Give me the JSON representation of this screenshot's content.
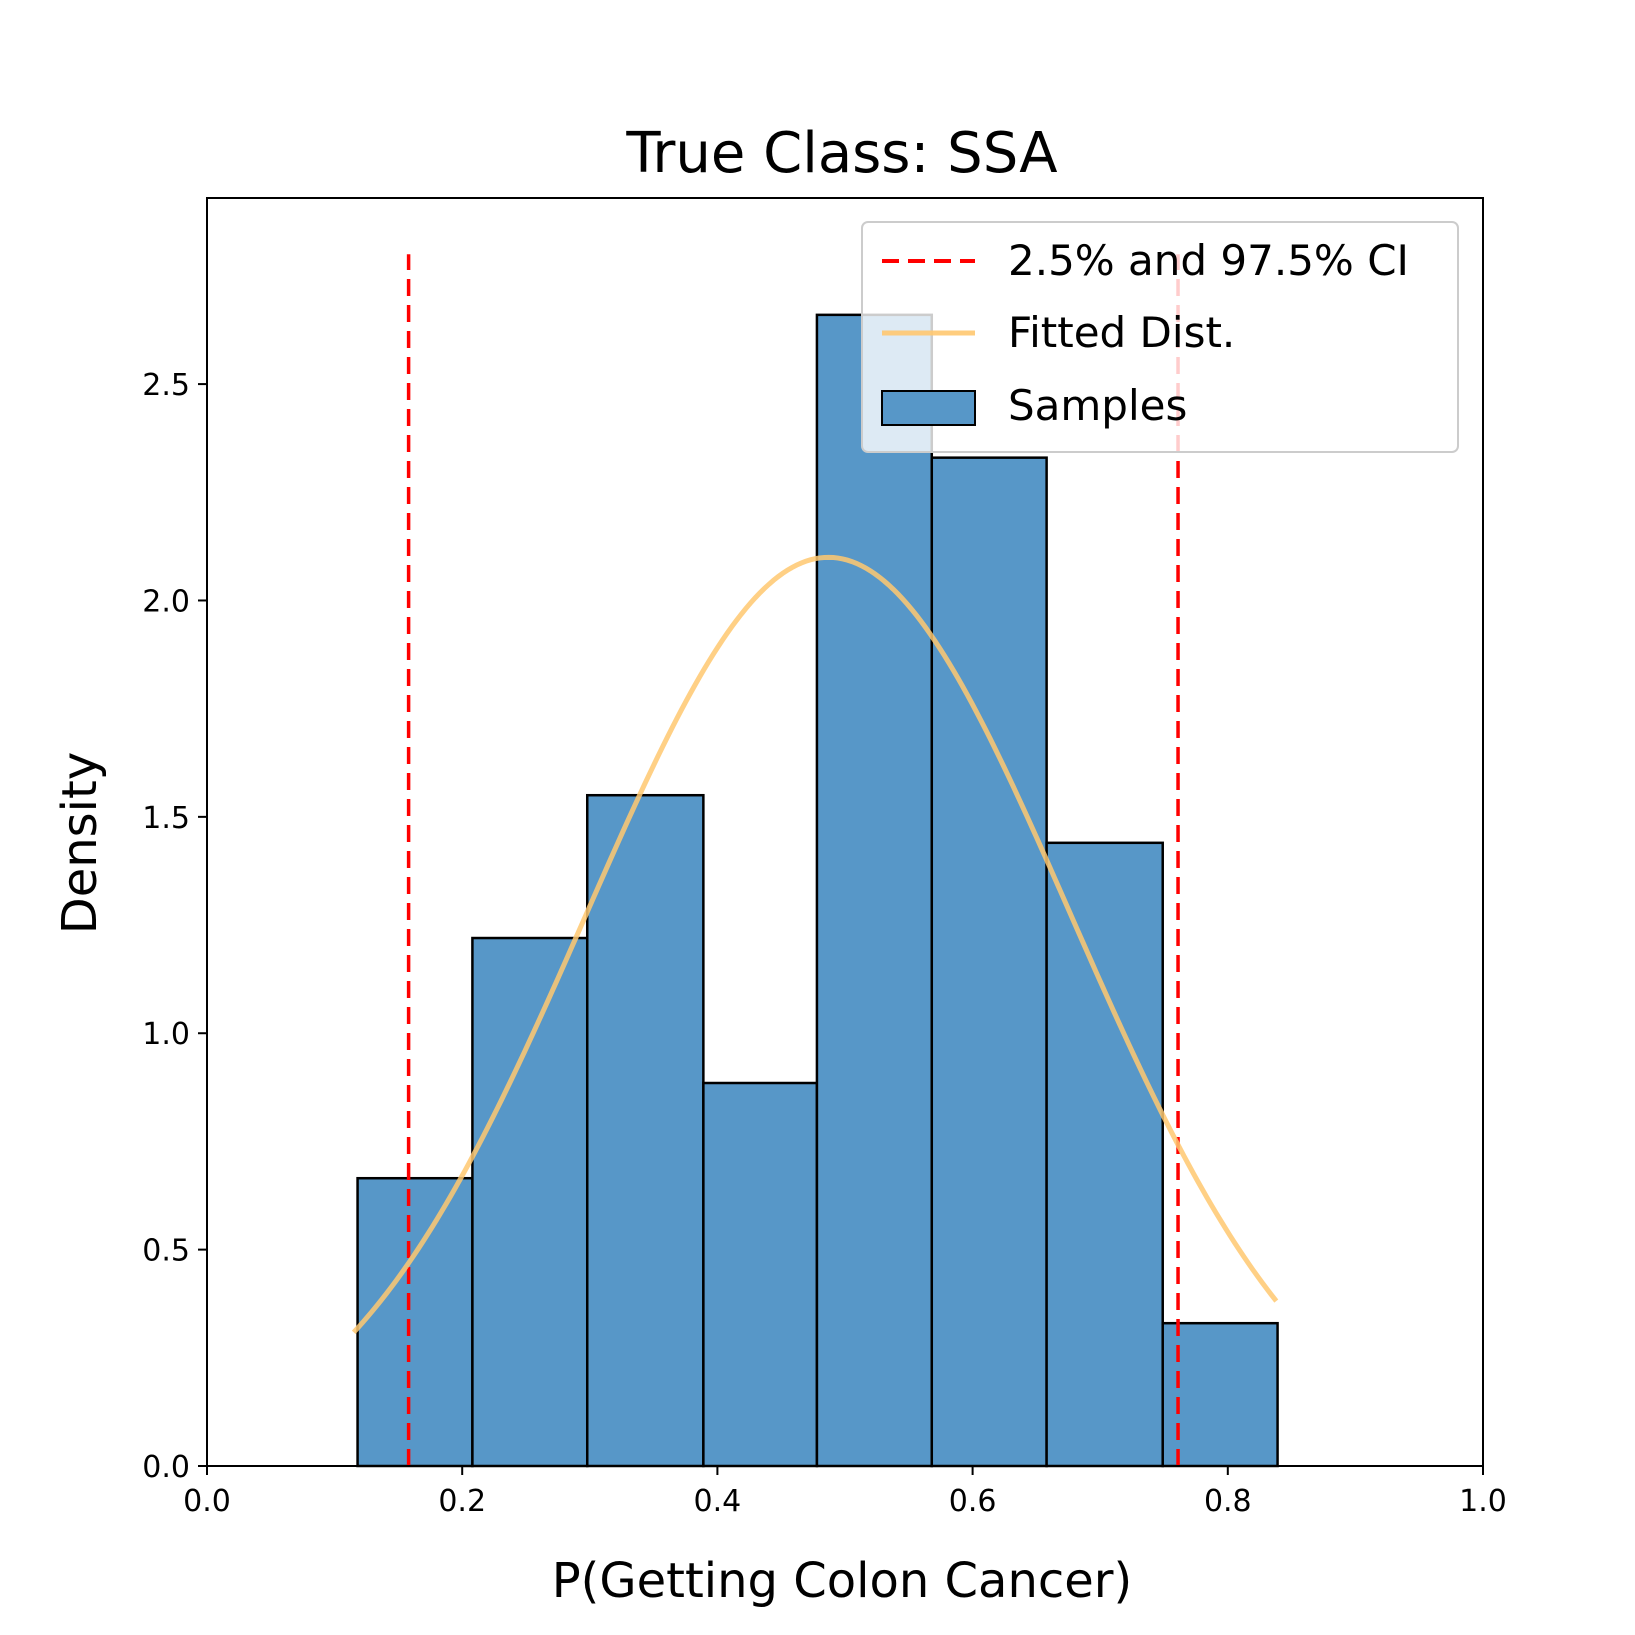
{
  "chart_data": {
    "type": "histogram",
    "title": "True Class: SSA",
    "xlabel": "P(Getting Colon Cancer)",
    "ylabel": "Density",
    "xlim": [
      0.0,
      1.0
    ],
    "ylim": [
      0.0,
      2.93
    ],
    "xticks": [
      {
        "value": 0.0,
        "label": "0.0"
      },
      {
        "value": 0.2,
        "label": "0.2"
      },
      {
        "value": 0.4,
        "label": "0.4"
      },
      {
        "value": 0.6,
        "label": "0.6"
      },
      {
        "value": 0.8,
        "label": "0.8"
      },
      {
        "value": 1.0,
        "label": "1.0"
      }
    ],
    "yticks": [
      {
        "value": 0.0,
        "label": "0.0"
      },
      {
        "value": 0.5,
        "label": "0.5"
      },
      {
        "value": 1.0,
        "label": "1.0"
      },
      {
        "value": 1.5,
        "label": "1.5"
      },
      {
        "value": 2.0,
        "label": "2.0"
      },
      {
        "value": 2.5,
        "label": "2.5"
      }
    ],
    "bins": [
      {
        "x0": 0.118,
        "x1": 0.208,
        "density": 0.665
      },
      {
        "x0": 0.208,
        "x1": 0.298,
        "density": 1.22
      },
      {
        "x0": 0.298,
        "x1": 0.389,
        "density": 1.55
      },
      {
        "x0": 0.389,
        "x1": 0.478,
        "density": 0.885
      },
      {
        "x0": 0.478,
        "x1": 0.568,
        "density": 2.66
      },
      {
        "x0": 0.568,
        "x1": 0.658,
        "density": 2.33
      },
      {
        "x0": 0.658,
        "x1": 0.749,
        "density": 1.44
      },
      {
        "x0": 0.749,
        "x1": 0.839,
        "density": 0.33
      }
    ],
    "fitted_dist": {
      "type": "normal",
      "mean": 0.487,
      "std": 0.19,
      "x_range": [
        0.115,
        0.838
      ]
    },
    "ci_lines": {
      "lower": 0.158,
      "upper": 0.761,
      "y_top": 2.8
    },
    "legend": {
      "position": "upper right",
      "entries": [
        "2.5% and 97.5% CI",
        "Fitted Dist.",
        "Samples"
      ]
    },
    "colors": {
      "bars": "#5797c8",
      "bar_edge": "#000000",
      "ci": "#ff0000",
      "fitted": "#ffc870"
    }
  }
}
